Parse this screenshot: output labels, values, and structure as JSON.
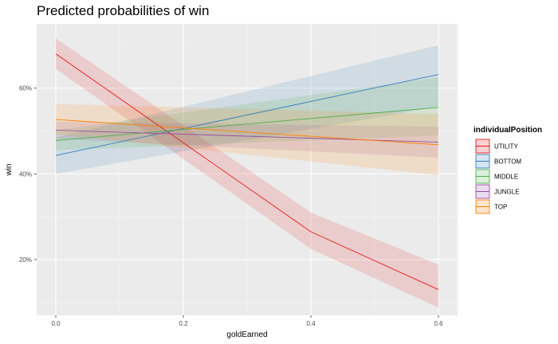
{
  "chart_data": {
    "type": "line",
    "title": "Predicted probabilities of win",
    "xlabel": "goldEarned",
    "ylabel": "win",
    "xlim": [
      -0.03,
      0.63
    ],
    "ylim": [
      0.07,
      0.75
    ],
    "x_ticks": [
      0.0,
      0.2,
      0.4,
      0.6
    ],
    "x_tick_labels": [
      "0.0",
      "0.2",
      "0.4",
      "0.6"
    ],
    "y_ticks": [
      0.2,
      0.4,
      0.6
    ],
    "y_tick_labels": [
      "20%",
      "40%",
      "60%"
    ],
    "grid": true,
    "legend": {
      "title": "individualPosition",
      "position": "right"
    },
    "series": [
      {
        "name": "UTILITY",
        "color": "#e41a1c",
        "x": [
          0.0,
          0.4,
          0.6
        ],
        "y": [
          0.68,
          0.265,
          0.13
        ],
        "lower": [
          0.645,
          0.225,
          0.088
        ],
        "upper": [
          0.716,
          0.31,
          0.188
        ]
      },
      {
        "name": "BOTTOM",
        "color": "#377eb8",
        "x": [
          0.0,
          0.6
        ],
        "y": [
          0.443,
          0.632
        ],
        "lower": [
          0.4,
          0.557
        ],
        "upper": [
          0.485,
          0.7
        ]
      },
      {
        "name": "MIDDLE",
        "color": "#4daf4a",
        "x": [
          0.0,
          0.6
        ],
        "y": [
          0.478,
          0.555
        ],
        "lower": [
          0.455,
          0.49
        ],
        "upper": [
          0.502,
          0.625
        ]
      },
      {
        "name": "JUNGLE",
        "color": "#984ea3",
        "x": [
          0.0,
          0.6
        ],
        "y": [
          0.502,
          0.474
        ],
        "lower": [
          0.482,
          0.438
        ],
        "upper": [
          0.522,
          0.51
        ]
      },
      {
        "name": "TOP",
        "color": "#ff7f00",
        "x": [
          0.0,
          0.6
        ],
        "y": [
          0.527,
          0.468
        ],
        "lower": [
          0.493,
          0.397
        ],
        "upper": [
          0.563,
          0.54
        ]
      }
    ]
  }
}
